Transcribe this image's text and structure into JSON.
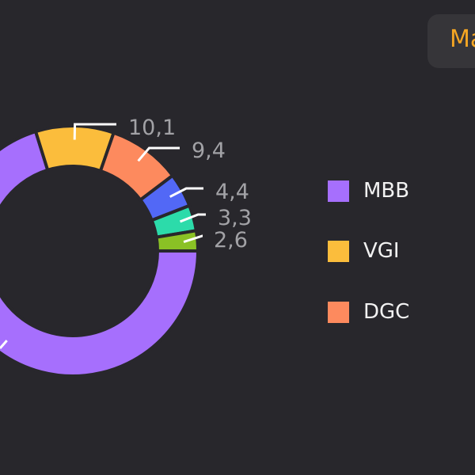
{
  "filter_chip": {
    "label": "Ma",
    "color": "#f5a623"
  },
  "chart_data": {
    "type": "pie",
    "variant": "donut",
    "categories": [
      "MBB",
      "VGI",
      "DGC",
      "",
      "",
      ""
    ],
    "values": [
      70.2,
      10.1,
      9.4,
      4.4,
      3.3,
      2.6
    ],
    "data_labels": [
      "",
      "10,1",
      "9,4",
      "4,4",
      "3,3",
      "2,6"
    ],
    "colors": [
      "#a66ffd",
      "#fbbd3c",
      "#fd8a5e",
      "#5268f6",
      "#2cdbaa",
      "#8ac125"
    ],
    "legend_position": "right",
    "legend": [
      {
        "label": "MBB",
        "color": "#a66ffd"
      },
      {
        "label": "VGI",
        "color": "#fbbd3c"
      },
      {
        "label": "DGC",
        "color": "#fd8a5e"
      }
    ]
  }
}
